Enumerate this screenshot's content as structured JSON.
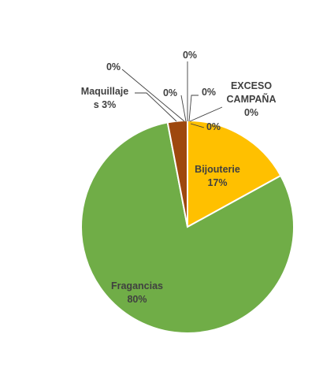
{
  "chart_data": {
    "type": "pie",
    "slices": [
      {
        "name": "Bijouterie",
        "value": 17,
        "label": "Bijouterie",
        "pct": "17%",
        "color": "#FFC000"
      },
      {
        "name": "Fragancias",
        "value": 80,
        "label": "Fragancias",
        "pct": "80%",
        "color": "#70AD47"
      },
      {
        "name": "Maquillajes",
        "value": 3,
        "label": "Maquillaje s 3%",
        "color": "#9E480E"
      },
      {
        "name": "",
        "value": 0,
        "label": "0%",
        "color": "#4472C4"
      },
      {
        "name": "",
        "value": 0,
        "label": "0%",
        "color": "#ED7D31"
      },
      {
        "name": "",
        "value": 0,
        "label": "0%",
        "color": "#A5A5A5"
      },
      {
        "name": "",
        "value": 0,
        "label": "0%",
        "color": "#5B9BD5"
      },
      {
        "name": "EXCESO CAMPAÑA",
        "value": 0,
        "label": "EXCESO CAMPAÑA 0%",
        "color": "#264478"
      },
      {
        "name": "",
        "value": 0,
        "label": "0%",
        "color": "#636363"
      }
    ],
    "start_angle": "top",
    "direction": "clockwise",
    "legend": "none"
  }
}
